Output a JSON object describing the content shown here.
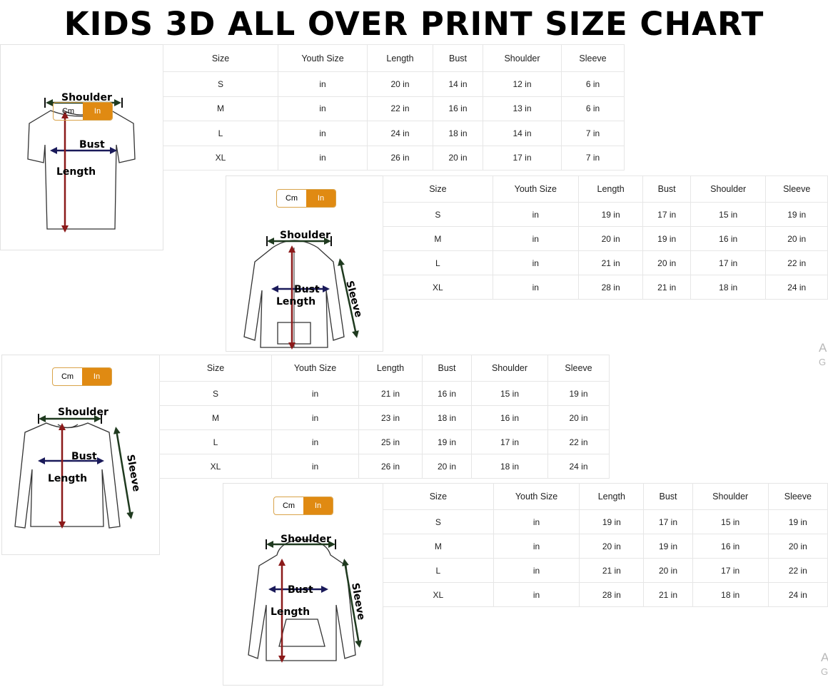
{
  "title": "KIDS 3D ALL OVER PRINT SIZE CHART",
  "toggle": {
    "cm": "Cm",
    "in": "In",
    "active": "In",
    "active_color": "#e08a12"
  },
  "measure_labels": {
    "shoulder": "Shoulder",
    "bust": "Bust",
    "length": "Length",
    "sleeve": "Sleeve"
  },
  "columns": [
    "Size",
    "Youth Size",
    "Length",
    "Bust",
    "Shoulder",
    "Sleeve"
  ],
  "charts": [
    {
      "garment": "t-shirt",
      "rows": [
        [
          "S",
          "in",
          "20 in",
          "14 in",
          "12 in",
          "6 in"
        ],
        [
          "M",
          "in",
          "22 in",
          "16 in",
          "13 in",
          "6 in"
        ],
        [
          "L",
          "in",
          "24 in",
          "18 in",
          "14 in",
          "7 in"
        ],
        [
          "XL",
          "in",
          "26 in",
          "20 in",
          "17 in",
          "7 in"
        ]
      ]
    },
    {
      "garment": "zip-hoodie",
      "rows": [
        [
          "S",
          "in",
          "19 in",
          "17 in",
          "15 in",
          "19 in"
        ],
        [
          "M",
          "in",
          "20 in",
          "19 in",
          "16 in",
          "20 in"
        ],
        [
          "L",
          "in",
          "21 in",
          "20 in",
          "17 in",
          "22 in"
        ],
        [
          "XL",
          "in",
          "28 in",
          "21 in",
          "18 in",
          "24 in"
        ]
      ]
    },
    {
      "garment": "long-sleeve",
      "rows": [
        [
          "S",
          "in",
          "21 in",
          "16 in",
          "15 in",
          "19 in"
        ],
        [
          "M",
          "in",
          "23 in",
          "18 in",
          "16 in",
          "20 in"
        ],
        [
          "L",
          "in",
          "25 in",
          "19 in",
          "17 in",
          "22 in"
        ],
        [
          "XL",
          "in",
          "26 in",
          "20 in",
          "18 in",
          "24 in"
        ]
      ]
    },
    {
      "garment": "pullover-hoodie",
      "rows": [
        [
          "S",
          "in",
          "19 in",
          "17 in",
          "15 in",
          "19 in"
        ],
        [
          "M",
          "in",
          "20 in",
          "19 in",
          "16 in",
          "20 in"
        ],
        [
          "L",
          "in",
          "21 in",
          "20 in",
          "17 in",
          "22 in"
        ],
        [
          "XL",
          "in",
          "28 in",
          "21 in",
          "18 in",
          "24 in"
        ]
      ]
    }
  ],
  "watermark": {
    "line1": "A",
    "line2": "G"
  },
  "colors": {
    "length_arrow": "#8b1a1a",
    "bust_arrow": "#1a1a5a",
    "shoulder_arrow": "#1f3a1f",
    "sleeve_arrow": "#1f3a1f"
  }
}
